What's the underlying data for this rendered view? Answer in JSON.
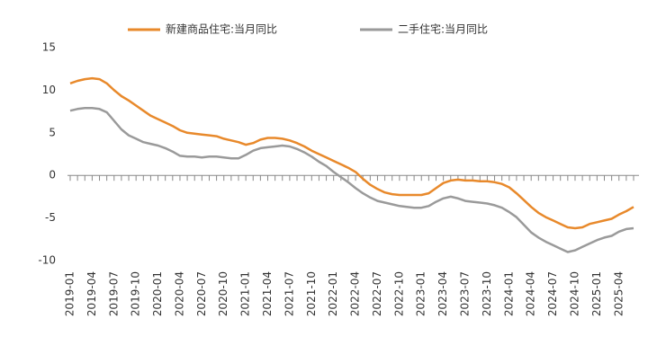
{
  "chart_data": {
    "type": "line",
    "categories": [
      "2019-01",
      null,
      null,
      "2019-04",
      null,
      null,
      "2019-07",
      null,
      null,
      "2019-10",
      null,
      null,
      "2020-01",
      null,
      null,
      "2020-04",
      null,
      null,
      "2020-07",
      null,
      null,
      "2020-10",
      null,
      null,
      "2021-01",
      null,
      null,
      "2021-04",
      null,
      null,
      "2021-07",
      null,
      null,
      "2021-10",
      null,
      null,
      "2022-01",
      null,
      null,
      "2022-04",
      null,
      null,
      "2022-07",
      null,
      null,
      "2022-10",
      null,
      null,
      "2023-01",
      null,
      null,
      "2023-04",
      null,
      null,
      "2023-07",
      null,
      null,
      "2023-10",
      null,
      null,
      "2024-01",
      null,
      null,
      "2024-04",
      null,
      null,
      "2024-07",
      null,
      null,
      "2024-10",
      null,
      null,
      "2025-01",
      null,
      null,
      "2025-04",
      null,
      null
    ],
    "series": [
      {
        "name": "新建商品住宅:当月同比",
        "color": "#e8892b",
        "values": [
          10.8,
          11.1,
          11.3,
          11.4,
          11.3,
          10.8,
          10.0,
          9.3,
          8.8,
          8.2,
          7.6,
          7.0,
          6.6,
          6.2,
          5.8,
          5.3,
          5.0,
          4.9,
          4.8,
          4.7,
          4.6,
          4.3,
          4.1,
          3.9,
          3.6,
          3.8,
          4.2,
          4.4,
          4.4,
          4.3,
          4.1,
          3.8,
          3.4,
          2.9,
          2.5,
          2.1,
          1.7,
          1.3,
          0.9,
          0.4,
          -0.4,
          -1.1,
          -1.6,
          -2.0,
          -2.2,
          -2.3,
          -2.3,
          -2.3,
          -2.3,
          -2.1,
          -1.5,
          -0.9,
          -0.6,
          -0.5,
          -0.6,
          -0.6,
          -0.7,
          -0.7,
          -0.8,
          -1.0,
          -1.4,
          -2.1,
          -2.9,
          -3.7,
          -4.4,
          -4.9,
          -5.3,
          -5.7,
          -6.1,
          -6.2,
          -6.1,
          -5.7,
          -5.5,
          -5.3,
          -5.1,
          -4.6,
          -4.2,
          -3.7
        ]
      },
      {
        "name": "二手住宅:当月同比",
        "color": "#9a9a9a",
        "values": [
          7.6,
          7.8,
          7.9,
          7.9,
          7.8,
          7.4,
          6.4,
          5.4,
          4.7,
          4.3,
          3.9,
          3.7,
          3.5,
          3.2,
          2.8,
          2.3,
          2.2,
          2.2,
          2.1,
          2.2,
          2.2,
          2.1,
          2.0,
          2.0,
          2.4,
          2.9,
          3.2,
          3.3,
          3.4,
          3.5,
          3.4,
          3.1,
          2.7,
          2.2,
          1.6,
          1.1,
          0.4,
          -0.2,
          -0.8,
          -1.5,
          -2.1,
          -2.6,
          -3.0,
          -3.2,
          -3.4,
          -3.6,
          -3.7,
          -3.8,
          -3.8,
          -3.6,
          -3.1,
          -2.7,
          -2.5,
          -2.7,
          -3.0,
          -3.1,
          -3.2,
          -3.3,
          -3.5,
          -3.8,
          -4.3,
          -4.9,
          -5.8,
          -6.7,
          -7.3,
          -7.8,
          -8.2,
          -8.6,
          -9.0,
          -8.8,
          -8.4,
          -8.0,
          -7.6,
          -7.3,
          -7.1,
          -6.6,
          -6.3,
          -6.2
        ]
      }
    ],
    "ylim": [
      -10,
      15
    ],
    "yticks": [
      -10,
      -5,
      0,
      5,
      10,
      15
    ],
    "grid": false,
    "legend": "top"
  }
}
